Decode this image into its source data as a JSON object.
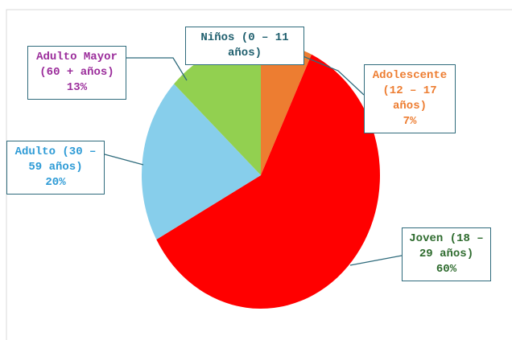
{
  "chart_data": {
    "type": "pie",
    "categories": [
      "Niños (0 – 11 años)",
      "Adolescente (12 – 17 años)",
      "Joven (18 – 29 años)",
      "Adulto (30 – 59 años)",
      "Adulto Mayor (60 + años)"
    ],
    "values": [
      0,
      7,
      60,
      20,
      13
    ],
    "value_labels": [
      null,
      "7%",
      "60%",
      "20%",
      "13%"
    ],
    "colors": [
      "#5b9bd5",
      "#ed7d31",
      "#ff0000",
      "#87ceeb",
      "#92d050"
    ],
    "label_colors": [
      "#1f5f6e",
      "#ed7d31",
      "#2e6b2e",
      "#2e9bd6",
      "#9b2d9b"
    ]
  }
}
